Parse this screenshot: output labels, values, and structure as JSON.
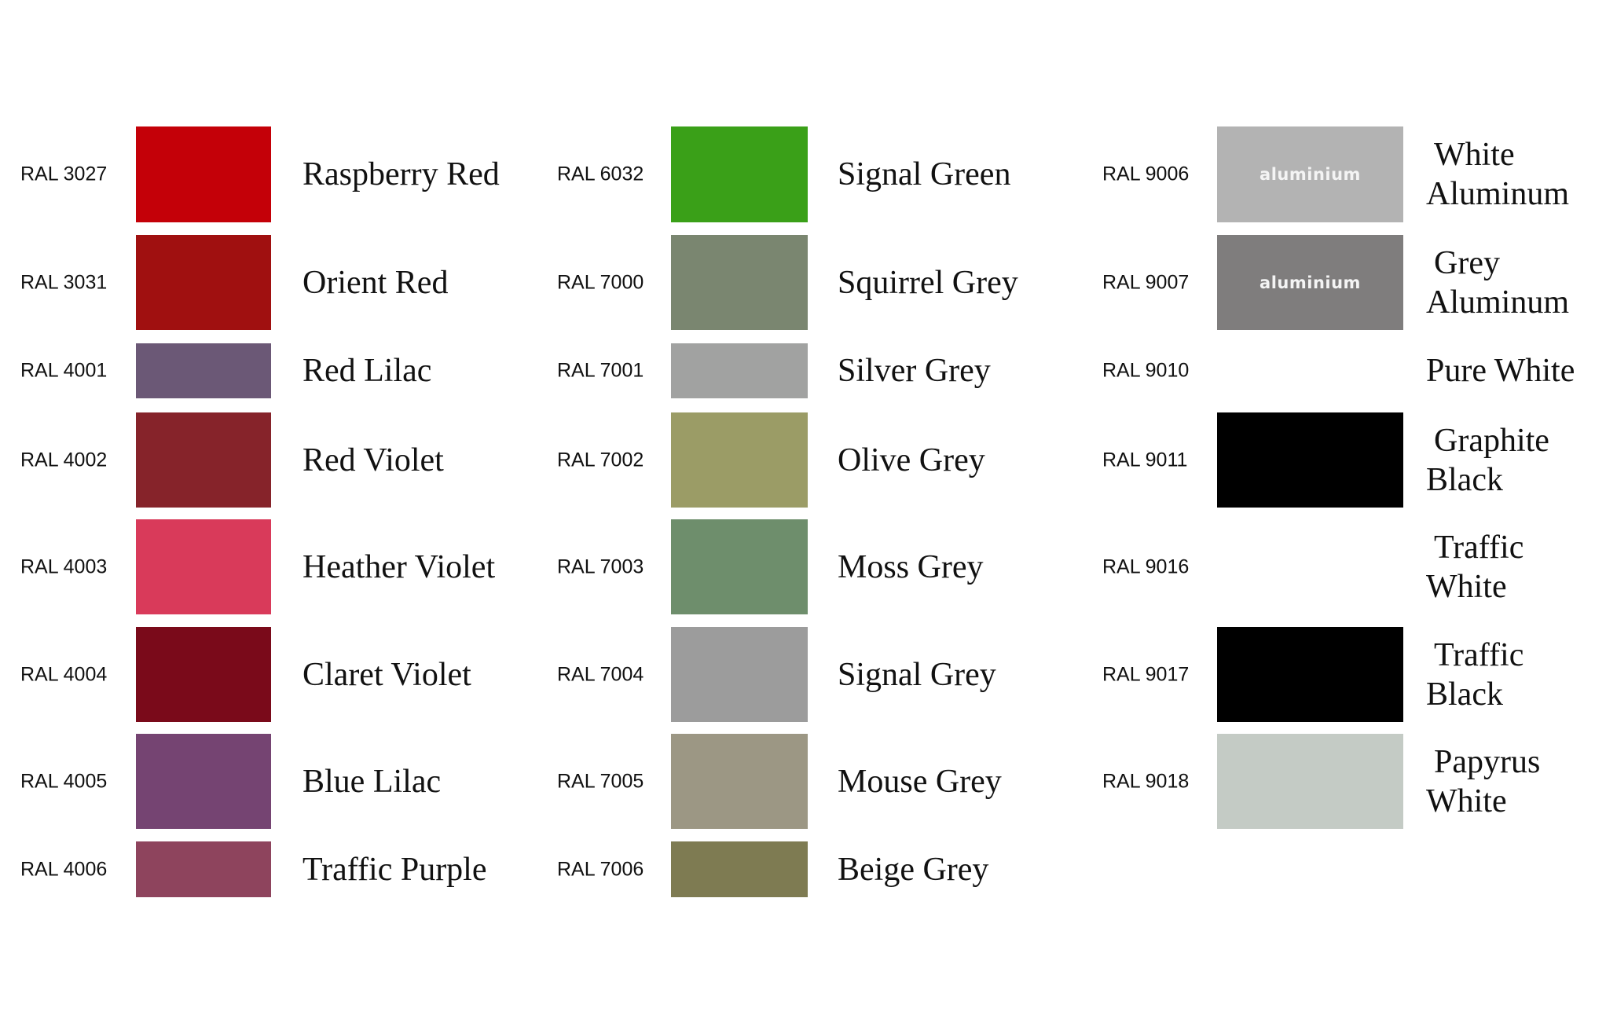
{
  "columns": [
    {
      "items": [
        {
          "code": "RAL 3027",
          "name": [
            "Raspberry Red"
          ],
          "color": "#c40008"
        },
        {
          "code": "RAL 3031",
          "name": [
            "Orient Red"
          ],
          "color": "#a01010"
        },
        {
          "code": "RAL 4001",
          "name": [
            "Red Lilac"
          ],
          "color": "#6b5876"
        },
        {
          "code": "RAL 4002",
          "name": [
            "Red Violet"
          ],
          "color": "#86232a"
        },
        {
          "code": "RAL 4003",
          "name": [
            "Heather Violet"
          ],
          "color": "#d93a5a"
        },
        {
          "code": "RAL 4004",
          "name": [
            "Claret Violet"
          ],
          "color": "#7a0a1a"
        },
        {
          "code": "RAL 4005",
          "name": [
            "Blue Lilac"
          ],
          "color": "#754472"
        },
        {
          "code": "RAL 4006",
          "name": [
            "Traffic Purple"
          ],
          "color": "#8e445d"
        }
      ]
    },
    {
      "items": [
        {
          "code": "RAL 6032",
          "name": [
            "Signal Green"
          ],
          "color": "#3aa018"
        },
        {
          "code": "RAL 7000",
          "name": [
            "Squirrel Grey"
          ],
          "color": "#7a8670"
        },
        {
          "code": "RAL 7001",
          "name": [
            "Silver Grey"
          ],
          "color": "#a1a2a1"
        },
        {
          "code": "RAL 7002",
          "name": [
            "Olive Grey"
          ],
          "color": "#9b9c66"
        },
        {
          "code": "RAL 7003",
          "name": [
            "Moss Grey"
          ],
          "color": "#6e8e6c"
        },
        {
          "code": "RAL 7004",
          "name": [
            "Signal Grey"
          ],
          "color": "#9c9c9c"
        },
        {
          "code": "RAL 7005",
          "name": [
            "Mouse Grey"
          ],
          "color": "#9c9784"
        },
        {
          "code": "RAL 7006",
          "name": [
            "Beige Grey"
          ],
          "color": "#7e7b52"
        }
      ]
    },
    {
      "items": [
        {
          "code": "RAL 9006",
          "name": [
            "White",
            "Aluminum"
          ],
          "color": "#b3b3b3",
          "swatch_text": "aluminium"
        },
        {
          "code": "RAL 9007",
          "name": [
            "Grey",
            "Aluminum"
          ],
          "color": "#7f7d7d",
          "swatch_text": "aluminium"
        },
        {
          "code": "RAL 9010",
          "name": [
            "Pure White"
          ],
          "color": null
        },
        {
          "code": "RAL 9011",
          "name": [
            "Graphite",
            "Black"
          ],
          "color": "#000000"
        },
        {
          "code": "RAL 9016",
          "name": [
            "Traffic",
            "White"
          ],
          "color": null
        },
        {
          "code": "RAL 9017",
          "name": [
            "Traffic",
            "Black"
          ],
          "color": "#000000"
        },
        {
          "code": "RAL 9018",
          "name": [
            "Papyrus",
            "White"
          ],
          "color": "#c4cbc5"
        }
      ]
    }
  ]
}
